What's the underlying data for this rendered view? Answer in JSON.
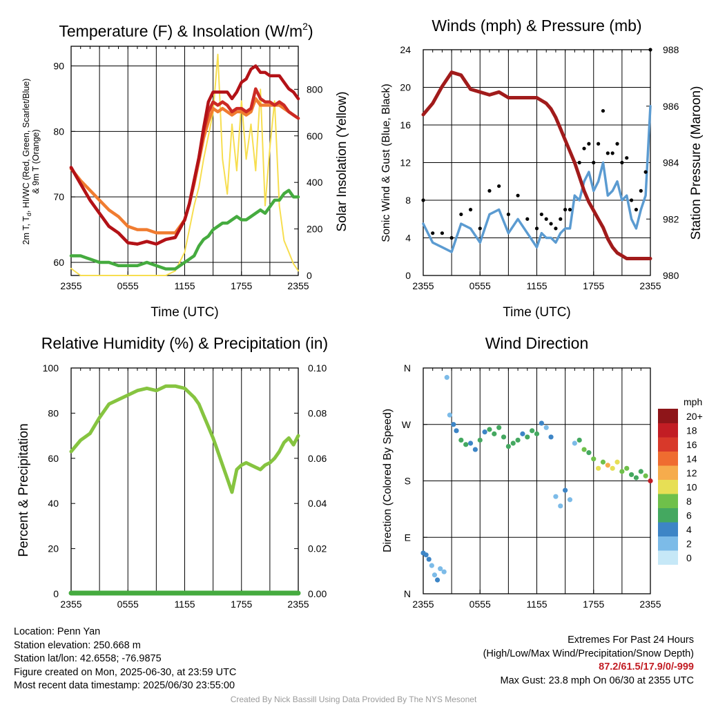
{
  "colors": {
    "temperature": "#cc2a24",
    "dewpoint": "#45ab3f",
    "heat_index": "#b31217",
    "nine_m_temp": "#f07c30",
    "insolation": "#f7de4f",
    "wind": "#5b9bd1",
    "gust": "#000000",
    "pressure": "#a11b1b",
    "humidity": "#86c440",
    "precip": "#45ab3f",
    "extremes": "#c21d24",
    "credit": "#9a9a9a"
  },
  "chart_data": [
    {
      "type": "line",
      "title": "Temperature (F) & Insolation (W/m²)",
      "xlabel": "Time (UTC)",
      "ylabel_left": "2m T, Td, HI/WC (Red, Green, Scarlet/Blue) & 9m T (Orange)",
      "ylabel_left_line1": "2m T, T",
      "ylabel_left_sub": "d",
      "ylabel_left_line1_rest": ", HI/WC (Red, Green, Scarlet/Blue)",
      "ylabel_left_line2": "& 9m T (Orange)",
      "ylabel_right": "Solar Insolation (Yellow)",
      "xticks": [
        "2355",
        "0555",
        "1155",
        "1755",
        "2355"
      ],
      "xlim_hours": [
        0,
        24
      ],
      "ylim": [
        58,
        93
      ],
      "yticks": [
        60,
        70,
        80,
        90
      ],
      "ylim_right": [
        0,
        985
      ],
      "yticks_right": [
        0,
        200,
        400,
        600,
        800
      ],
      "x_hours": [
        0,
        1,
        2,
        3,
        4,
        5,
        6,
        7,
        8,
        9,
        10,
        11,
        12,
        12.5,
        13,
        13.5,
        14,
        14.5,
        15,
        15.5,
        16,
        16.5,
        17,
        17.5,
        18,
        18.5,
        19,
        19.5,
        20,
        20.5,
        21,
        21.5,
        22,
        22.5,
        23,
        23.5,
        24
      ],
      "series": [
        {
          "name": "2m T",
          "color_key": "temperature",
          "values": [
            74.5,
            72.0,
            69.5,
            67.5,
            65.5,
            64.5,
            63.0,
            62.8,
            63.2,
            62.8,
            63.5,
            63.8,
            66.5,
            69.0,
            72.5,
            76.0,
            80.0,
            83.0,
            84.5,
            84.0,
            84.5,
            84.0,
            83.0,
            83.5,
            83.5,
            83.0,
            83.5,
            86.5,
            85.0,
            84.5,
            84.5,
            84.0,
            84.5,
            84.0,
            83.0,
            82.5,
            82.0
          ]
        },
        {
          "name": "9m T",
          "color_key": "nine_m_temp",
          "values": [
            74.3,
            72.5,
            71.0,
            69.5,
            68.0,
            67.0,
            65.5,
            65.0,
            65.0,
            64.5,
            64.5,
            64.5,
            66.5,
            69.0,
            72.0,
            75.5,
            79.0,
            81.5,
            83.5,
            83.0,
            83.5,
            83.0,
            82.5,
            83.0,
            83.0,
            82.5,
            83.0,
            85.0,
            84.0,
            84.0,
            84.0,
            84.0,
            84.0,
            83.5,
            83.0,
            82.5,
            82.0
          ]
        },
        {
          "name": "HI/WC",
          "color_key": "heat_index",
          "values": [
            74.5,
            72.0,
            69.5,
            67.5,
            65.5,
            64.5,
            63.0,
            62.8,
            63.2,
            62.8,
            63.5,
            63.8,
            66.5,
            69.0,
            72.5,
            76.0,
            80.5,
            84.5,
            86.0,
            86.0,
            86.0,
            86.0,
            85.0,
            86.0,
            87.5,
            88.0,
            89.5,
            90.0,
            89.0,
            89.0,
            88.5,
            88.5,
            88.5,
            87.5,
            86.5,
            86.0,
            85.0
          ]
        },
        {
          "name": "2m Td",
          "color_key": "dewpoint",
          "values": [
            61.0,
            61.0,
            60.5,
            60.0,
            60.0,
            59.5,
            59.5,
            59.5,
            60.0,
            59.5,
            59.0,
            59.0,
            60.0,
            60.5,
            61.0,
            62.5,
            63.5,
            64.0,
            65.0,
            65.5,
            66.0,
            66.0,
            66.5,
            67.0,
            66.5,
            66.5,
            67.0,
            67.5,
            68.0,
            67.5,
            68.5,
            69.5,
            69.5,
            70.5,
            71.0,
            70.0,
            70.0
          ]
        },
        {
          "name": "Solar Insolation",
          "color_key": "insolation",
          "axis": "right",
          "values": [
            30,
            0,
            0,
            0,
            0,
            0,
            0,
            0,
            0,
            0,
            0,
            20,
            100,
            200,
            300,
            380,
            500,
            600,
            700,
            950,
            500,
            350,
            650,
            450,
            750,
            500,
            650,
            450,
            800,
            300,
            550,
            750,
            300,
            150,
            100,
            50,
            20
          ]
        }
      ]
    },
    {
      "type": "line",
      "title": "Winds (mph) & Pressure (mb)",
      "xlabel": "Time (UTC)",
      "ylabel_left": "Sonic Wind & Gust (Blue, Black)",
      "ylabel_right": "Station Pressure (Maroon)",
      "xticks": [
        "2355",
        "0555",
        "1155",
        "1755",
        "2355"
      ],
      "xlim_hours": [
        0,
        24
      ],
      "ylim": [
        0,
        24
      ],
      "yticks": [
        0,
        4,
        8,
        12,
        16,
        20,
        24
      ],
      "ylim_right": [
        980,
        988
      ],
      "yticks_right": [
        980,
        982,
        984,
        986,
        988
      ],
      "x_hours": [
        0,
        1,
        2,
        3,
        4,
        5,
        6,
        7,
        8,
        9,
        10,
        11,
        12,
        12.5,
        13,
        13.5,
        14,
        14.5,
        15,
        15.5,
        16,
        16.5,
        17,
        17.5,
        18,
        18.5,
        19,
        19.5,
        20,
        20.5,
        21,
        21.5,
        22,
        22.5,
        23,
        23.5,
        24
      ],
      "series": [
        {
          "name": "Sonic Wind",
          "color_key": "wind",
          "values": [
            5.5,
            3.5,
            3.0,
            2.5,
            5.5,
            5.0,
            3.5,
            6.5,
            7.0,
            4.5,
            6.0,
            4.5,
            3.0,
            4.5,
            4.0,
            4.0,
            3.5,
            4.5,
            5.0,
            5.0,
            8.5,
            8.0,
            10.0,
            11.0,
            9.0,
            10.0,
            12.0,
            8.5,
            9.0,
            10.0,
            8.0,
            8.5,
            6.0,
            5.0,
            7.0,
            8.5,
            18.0
          ]
        },
        {
          "name": "Gust",
          "color_key": "gust",
          "values": [
            8.0,
            4.5,
            4.5,
            4.0,
            6.5,
            7.0,
            5.0,
            9.0,
            9.5,
            6.5,
            8.5,
            6.0,
            5.0,
            6.5,
            6.0,
            5.5,
            5.0,
            6.0,
            7.0,
            7.0,
            12.0,
            12.0,
            13.5,
            14.0,
            12.0,
            14.0,
            17.5,
            13.0,
            13.0,
            14.0,
            12.0,
            12.5,
            8.0,
            7.0,
            9.0,
            11.0,
            24.0
          ]
        },
        {
          "name": "Station Pressure",
          "color_key": "pressure",
          "axis": "right",
          "values": [
            985.7,
            986.1,
            986.7,
            987.2,
            987.1,
            986.6,
            986.5,
            986.4,
            986.5,
            986.3,
            986.3,
            986.3,
            986.3,
            986.2,
            986.1,
            985.9,
            985.6,
            985.2,
            984.8,
            984.4,
            984.0,
            983.5,
            983.0,
            982.6,
            982.3,
            982.0,
            981.7,
            981.3,
            981.0,
            980.8,
            980.7,
            980.6,
            980.6,
            980.6,
            980.6,
            980.6,
            980.6
          ]
        }
      ]
    },
    {
      "type": "line",
      "title": "Relative Humidity (%) & Precipitation (in)",
      "ylabel_left": "Percent & Precipitation",
      "xticks": [
        "2355",
        "0555",
        "1155",
        "1755",
        "2355"
      ],
      "xlim_hours": [
        0,
        24
      ],
      "ylim": [
        0,
        100
      ],
      "yticks": [
        0,
        20,
        40,
        60,
        80,
        100
      ],
      "ylim_right": [
        0,
        0.1
      ],
      "yticks_right": [
        "0.00",
        "0.02",
        "0.04",
        "0.06",
        "0.08",
        "0.10"
      ],
      "x_hours": [
        0,
        1,
        2,
        3,
        4,
        5,
        6,
        7,
        8,
        9,
        10,
        11,
        12,
        12.5,
        13,
        13.5,
        14,
        14.5,
        15,
        15.5,
        16,
        16.5,
        17,
        17.5,
        18,
        18.5,
        19,
        19.5,
        20,
        20.5,
        21,
        21.5,
        22,
        22.5,
        23,
        23.5,
        24
      ],
      "series": [
        {
          "name": "Relative Humidity",
          "color_key": "humidity",
          "values": [
            63,
            68,
            71,
            78,
            84,
            86,
            88,
            90,
            91,
            90,
            92,
            92,
            91,
            89,
            87,
            84,
            79,
            74,
            69,
            63,
            57,
            51,
            45,
            55,
            57,
            58,
            57,
            56,
            55,
            57,
            58,
            60,
            63,
            67,
            69,
            66,
            70
          ]
        },
        {
          "name": "Precipitation",
          "color_key": "precip",
          "axis": "right",
          "values": [
            0,
            0,
            0,
            0,
            0,
            0,
            0,
            0,
            0,
            0,
            0,
            0,
            0,
            0,
            0,
            0,
            0,
            0,
            0,
            0,
            0,
            0,
            0,
            0,
            0,
            0,
            0,
            0,
            0,
            0,
            0,
            0,
            0,
            0,
            0,
            0,
            0
          ]
        }
      ]
    },
    {
      "type": "scatter",
      "title": "Wind Direction",
      "ylabel_left": "Direction (Colored By Speed)",
      "xticks": [
        "2355",
        "0555",
        "1155",
        "1755",
        "2355"
      ],
      "xlim_hours": [
        0,
        24
      ],
      "ylim_deg": [
        0,
        360
      ],
      "yticks": [
        "N",
        "E",
        "S",
        "W",
        "N"
      ],
      "colorbar": {
        "title": "mph",
        "labels": [
          "0",
          "2",
          "4",
          "6",
          "8",
          "10",
          "12",
          "14",
          "16",
          "18",
          "20+"
        ],
        "colors": [
          "#c6e8f7",
          "#7cbbe8",
          "#3d85c6",
          "#44a860",
          "#6fc04a",
          "#e7df55",
          "#f6ac4c",
          "#ef6c30",
          "#d8392a",
          "#c21d24",
          "#8e1519"
        ]
      },
      "points": [
        {
          "x": 0.0,
          "dir": 65,
          "speed": 5
        },
        {
          "x": 0.3,
          "dir": 62,
          "speed": 4
        },
        {
          "x": 0.6,
          "dir": 55,
          "speed": 4
        },
        {
          "x": 0.9,
          "dir": 45,
          "speed": 3
        },
        {
          "x": 1.2,
          "dir": 30,
          "speed": 3
        },
        {
          "x": 1.5,
          "dir": 22,
          "speed": 4
        },
        {
          "x": 1.8,
          "dir": 40,
          "speed": 2
        },
        {
          "x": 2.2,
          "dir": 35,
          "speed": 3
        },
        {
          "x": 2.5,
          "dir": 345,
          "speed": 2
        },
        {
          "x": 2.8,
          "dir": 285,
          "speed": 3
        },
        {
          "x": 3.2,
          "dir": 270,
          "speed": 5
        },
        {
          "x": 3.5,
          "dir": 260,
          "speed": 5
        },
        {
          "x": 4.0,
          "dir": 245,
          "speed": 6
        },
        {
          "x": 4.5,
          "dir": 238,
          "speed": 6
        },
        {
          "x": 5.0,
          "dir": 240,
          "speed": 5
        },
        {
          "x": 5.5,
          "dir": 230,
          "speed": 4
        },
        {
          "x": 6.0,
          "dir": 245,
          "speed": 6
        },
        {
          "x": 6.5,
          "dir": 258,
          "speed": 5
        },
        {
          "x": 7.0,
          "dir": 262,
          "speed": 7
        },
        {
          "x": 7.5,
          "dir": 255,
          "speed": 6
        },
        {
          "x": 8.0,
          "dir": 265,
          "speed": 7
        },
        {
          "x": 8.5,
          "dir": 250,
          "speed": 6
        },
        {
          "x": 9.0,
          "dir": 235,
          "speed": 6
        },
        {
          "x": 9.5,
          "dir": 240,
          "speed": 7
        },
        {
          "x": 10.0,
          "dir": 245,
          "speed": 6
        },
        {
          "x": 10.5,
          "dir": 255,
          "speed": 5
        },
        {
          "x": 11.0,
          "dir": 250,
          "speed": 6
        },
        {
          "x": 11.5,
          "dir": 260,
          "speed": 7
        },
        {
          "x": 12.0,
          "dir": 255,
          "speed": 6
        },
        {
          "x": 12.5,
          "dir": 272,
          "speed": 4
        },
        {
          "x": 13.0,
          "dir": 265,
          "speed": 3
        },
        {
          "x": 13.5,
          "dir": 250,
          "speed": 4
        },
        {
          "x": 14.0,
          "dir": 155,
          "speed": 3
        },
        {
          "x": 14.5,
          "dir": 140,
          "speed": 2
        },
        {
          "x": 15.0,
          "dir": 165,
          "speed": 4
        },
        {
          "x": 15.5,
          "dir": 150,
          "speed": 3
        },
        {
          "x": 16.0,
          "dir": 240,
          "speed": 3
        },
        {
          "x": 16.5,
          "dir": 245,
          "speed": 7
        },
        {
          "x": 17.0,
          "dir": 230,
          "speed": 8
        },
        {
          "x": 17.5,
          "dir": 225,
          "speed": 7
        },
        {
          "x": 18.0,
          "dir": 215,
          "speed": 9
        },
        {
          "x": 18.5,
          "dir": 200,
          "speed": 10
        },
        {
          "x": 19.0,
          "dir": 210,
          "speed": 8
        },
        {
          "x": 19.5,
          "dir": 205,
          "speed": 12
        },
        {
          "x": 20.0,
          "dir": 200,
          "speed": 11
        },
        {
          "x": 20.5,
          "dir": 210,
          "speed": 10
        },
        {
          "x": 21.0,
          "dir": 195,
          "speed": 8
        },
        {
          "x": 21.5,
          "dir": 200,
          "speed": 9
        },
        {
          "x": 22.0,
          "dir": 190,
          "speed": 7
        },
        {
          "x": 22.5,
          "dir": 185,
          "speed": 6
        },
        {
          "x": 23.0,
          "dir": 195,
          "speed": 7
        },
        {
          "x": 23.5,
          "dir": 188,
          "speed": 8
        },
        {
          "x": 24.0,
          "dir": 180,
          "speed": 18
        }
      ]
    }
  ],
  "info": {
    "location": "Location: Penn Yan",
    "elevation": "Station elevation: 250.668 m",
    "latlon": "Station lat/lon: 42.6558; -76.9875",
    "created": "Figure created on Mon, 2025-06-30, at 23:59 UTC",
    "recent": "Most recent data timestamp: 2025/06/30 23:55:00"
  },
  "extremes": {
    "title": "Extremes For Past 24 Hours",
    "subtitle": "(High/Low/Max Wind/Precipitation/Snow Depth)",
    "values": "87.2/61.5/17.9/0/-999",
    "gust": "Max Gust: 23.8 mph On 06/30 at 2355 UTC"
  },
  "credit": "Created By Nick Bassill Using Data Provided By The NYS Mesonet"
}
